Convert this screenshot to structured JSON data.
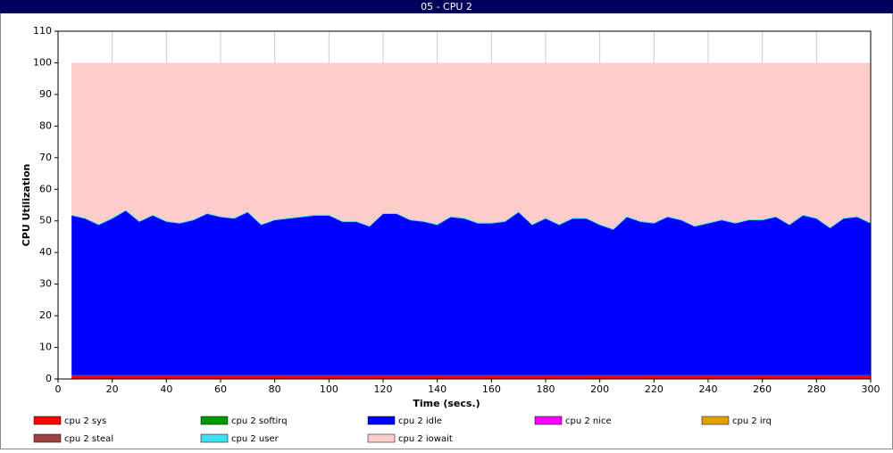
{
  "chart_data": {
    "type": "stacked-area",
    "title": "05 - CPU 2",
    "x_label": "Time (secs.)",
    "y_label": "CPU Utilization",
    "x": [
      5,
      10,
      15,
      20,
      25,
      30,
      35,
      40,
      45,
      50,
      55,
      60,
      65,
      70,
      75,
      80,
      85,
      90,
      95,
      100,
      105,
      110,
      115,
      120,
      125,
      130,
      135,
      140,
      145,
      150,
      155,
      160,
      165,
      170,
      175,
      180,
      185,
      190,
      195,
      200,
      205,
      210,
      215,
      220,
      225,
      230,
      235,
      240,
      245,
      250,
      255,
      260,
      265,
      270,
      275,
      280,
      285,
      290,
      295,
      300
    ],
    "xlim": [
      0,
      300
    ],
    "xticks": [
      0,
      20,
      40,
      60,
      80,
      100,
      120,
      140,
      160,
      180,
      200,
      220,
      240,
      260,
      280,
      300
    ],
    "ylim": [
      0,
      110
    ],
    "yticks": [
      0,
      10,
      20,
      30,
      40,
      50,
      60,
      70,
      80,
      90,
      100,
      110
    ],
    "grid": "x",
    "series": [
      {
        "name": "cpu 2 sys",
        "color": "#ff0000",
        "values": [
          1.2,
          1.2,
          1.2,
          1.2,
          1.2,
          1.2,
          1.2,
          1.2,
          1.2,
          1.2,
          1.2,
          1.2,
          1.2,
          1.2,
          1.2,
          1.2,
          1.2,
          1.2,
          1.2,
          1.2,
          1.2,
          1.2,
          1.2,
          1.2,
          1.2,
          1.2,
          1.2,
          1.2,
          1.2,
          1.2,
          1.2,
          1.2,
          1.2,
          1.2,
          1.2,
          1.2,
          1.2,
          1.2,
          1.2,
          1.2,
          1.2,
          1.2,
          1.2,
          1.2,
          1.2,
          1.2,
          1.2,
          1.2,
          1.2,
          1.2,
          1.2,
          1.2,
          1.2,
          1.2,
          1.2,
          1.2,
          1.2,
          1.2,
          1.2,
          1.2
        ]
      },
      {
        "name": "cpu 2 softirq",
        "color": "#009900",
        "values": [
          0,
          0,
          0,
          0,
          0,
          0,
          0,
          0,
          0,
          0,
          0,
          0,
          0,
          0,
          0,
          0,
          0,
          0,
          0,
          0,
          0,
          0,
          0,
          0,
          0,
          0,
          0,
          0,
          0,
          0,
          0,
          0,
          0,
          0,
          0,
          0,
          0,
          0,
          0,
          0,
          0,
          0,
          0,
          0,
          0,
          0,
          0,
          0,
          0,
          0,
          0,
          0,
          0,
          0,
          0,
          0,
          0,
          0,
          0,
          0
        ]
      },
      {
        "name": "cpu 2 idle",
        "color": "#0000ff",
        "values": [
          50.5,
          49.5,
          47.5,
          49.5,
          52,
          48.5,
          50.5,
          48.5,
          48,
          49,
          51,
          50,
          49.5,
          51.5,
          47.5,
          49,
          49.5,
          50,
          50.5,
          50.5,
          48.5,
          48.5,
          47,
          51,
          51,
          49,
          48.5,
          47.5,
          50,
          49.5,
          48,
          48,
          48.5,
          51.5,
          47.5,
          49.5,
          47.5,
          49.5,
          49.5,
          47.5,
          46,
          50,
          48.5,
          48,
          50,
          49,
          47,
          48,
          49,
          48,
          49,
          49,
          50,
          47.5,
          50.5,
          49.5,
          46.5,
          49.5,
          50,
          48
        ]
      },
      {
        "name": "cpu 2 nice",
        "color": "#ff00ff",
        "values": [
          0,
          0,
          0,
          0,
          0,
          0,
          0,
          0,
          0,
          0,
          0,
          0,
          0,
          0,
          0,
          0,
          0,
          0,
          0,
          0,
          0,
          0,
          0,
          0,
          0,
          0,
          0,
          0,
          0,
          0,
          0,
          0,
          0,
          0,
          0,
          0,
          0,
          0,
          0,
          0,
          0,
          0,
          0,
          0,
          0,
          0,
          0,
          0,
          0,
          0,
          0,
          0,
          0,
          0,
          0,
          0,
          0,
          0,
          0,
          0
        ]
      },
      {
        "name": "cpu 2 irq",
        "color": "#e0a000",
        "values": [
          0,
          0,
          0,
          0,
          0,
          0,
          0,
          0,
          0,
          0,
          0,
          0,
          0,
          0,
          0,
          0,
          0,
          0,
          0,
          0,
          0,
          0,
          0,
          0,
          0,
          0,
          0,
          0,
          0,
          0,
          0,
          0,
          0,
          0,
          0,
          0,
          0,
          0,
          0,
          0,
          0,
          0,
          0,
          0,
          0,
          0,
          0,
          0,
          0,
          0,
          0,
          0,
          0,
          0,
          0,
          0,
          0,
          0,
          0,
          0
        ]
      },
      {
        "name": "cpu 2 steal",
        "color": "#a04040",
        "values": [
          0,
          0,
          0,
          0,
          0,
          0,
          0,
          0,
          0,
          0,
          0,
          0,
          0,
          0,
          0,
          0,
          0,
          0,
          0,
          0,
          0,
          0,
          0,
          0,
          0,
          0,
          0,
          0,
          0,
          0,
          0,
          0,
          0,
          0,
          0,
          0,
          0,
          0,
          0,
          0,
          0,
          0,
          0,
          0,
          0,
          0,
          0,
          0,
          0,
          0,
          0,
          0,
          0,
          0,
          0,
          0,
          0,
          0,
          0,
          0
        ]
      },
      {
        "name": "cpu 2 user",
        "color": "#40e0f0",
        "values": [
          0.3,
          0.3,
          0.3,
          0.3,
          0.3,
          0.3,
          0.3,
          0.3,
          0.3,
          0.3,
          0.3,
          0.3,
          0.3,
          0.3,
          0.3,
          0.3,
          0.3,
          0.3,
          0.3,
          0.3,
          0.3,
          0.3,
          0.3,
          0.3,
          0.3,
          0.3,
          0.3,
          0.3,
          0.3,
          0.3,
          0.3,
          0.3,
          0.3,
          0.3,
          0.3,
          0.3,
          0.3,
          0.3,
          0.3,
          0.3,
          0.3,
          0.3,
          0.3,
          0.3,
          0.3,
          0.3,
          0.3,
          0.3,
          0.3,
          0.3,
          0.3,
          0.3,
          0.3,
          0.3,
          0.3,
          0.3,
          0.3,
          0.3,
          0.3,
          0.3
        ]
      },
      {
        "name": "cpu 2 iowait",
        "color": "#ffcccc",
        "values": [
          48,
          49,
          51,
          49,
          46.5,
          50,
          48,
          50,
          50.5,
          49.5,
          47.5,
          48.5,
          49,
          47,
          51,
          49.5,
          49,
          48.5,
          48,
          48,
          50,
          50,
          51.5,
          47.5,
          47.5,
          49.5,
          50,
          51,
          48.5,
          49,
          50.5,
          50.5,
          50,
          47,
          51,
          49,
          51,
          49,
          49,
          51,
          52.5,
          48.5,
          50,
          50.5,
          48.5,
          49.5,
          51.5,
          50.5,
          49.5,
          50.5,
          49.5,
          49.5,
          48.5,
          51,
          48,
          49,
          52,
          49,
          48.5,
          50.5
        ]
      }
    ]
  }
}
